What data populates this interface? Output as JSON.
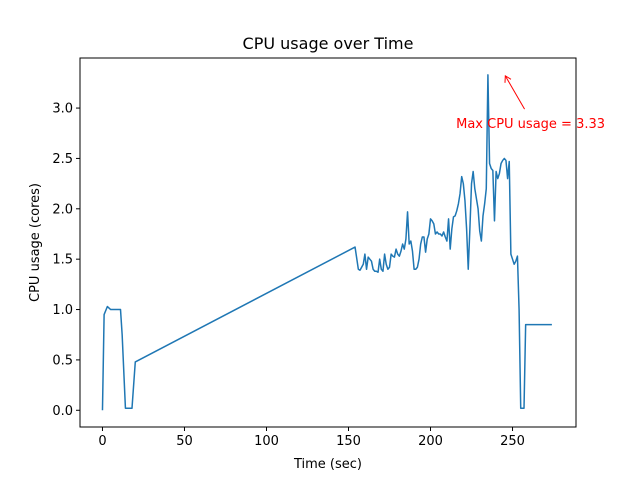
{
  "chart_data": {
    "type": "line",
    "title": "CPU usage over Time",
    "xlabel": "Time (sec)",
    "ylabel": "CPU usage (cores)",
    "xlim": [
      -13.7,
      288.7
    ],
    "ylim": [
      -0.166,
      3.497
    ],
    "x_ticks": [
      0,
      50,
      100,
      150,
      200,
      250
    ],
    "x_tick_labels": [
      "0",
      "50",
      "100",
      "150",
      "200",
      "250"
    ],
    "y_ticks": [
      0.0,
      0.5,
      1.0,
      1.5,
      2.0,
      2.5,
      3.0
    ],
    "y_tick_labels": [
      "0.0",
      "0.5",
      "1.0",
      "1.5",
      "2.0",
      "2.5",
      "3.0"
    ],
    "grid": false,
    "line_color": "#1f77b4",
    "annotation": {
      "text": "Max CPU usage = 3.33",
      "xy": [
        245,
        3.33
      ],
      "text_xy": [
        261,
        2.85
      ],
      "color": "#ff0000"
    },
    "series": [
      {
        "name": "CPU usage",
        "x": [
          0,
          1,
          3,
          5,
          7,
          9,
          11,
          12,
          14,
          16,
          18,
          20,
          154,
          156,
          157,
          159,
          160,
          161,
          162,
          163,
          164,
          165,
          166,
          167,
          168,
          169,
          170,
          171,
          172,
          173,
          174,
          175,
          176,
          177,
          178,
          179,
          180,
          181,
          182,
          183,
          184,
          185,
          186,
          187,
          188,
          189,
          190,
          191,
          192,
          193,
          194,
          195,
          196,
          197,
          198,
          199,
          200,
          201,
          202,
          203,
          204,
          205,
          206,
          207,
          208,
          209,
          210,
          211,
          212,
          213,
          214,
          215,
          216,
          217,
          218,
          219,
          220,
          221,
          222,
          223,
          224,
          225,
          226,
          227,
          228,
          229,
          230,
          231,
          232,
          233,
          234,
          235,
          236,
          237,
          238,
          239,
          240,
          241,
          242,
          243,
          244,
          245,
          246,
          247,
          248,
          249,
          250,
          251,
          252,
          253,
          254,
          255,
          256,
          257,
          258,
          259,
          260,
          261,
          262,
          263,
          264,
          265,
          266,
          267,
          268,
          269,
          270,
          271,
          272,
          273,
          274
        ],
        "y": [
          0.0,
          0.95,
          1.03,
          1.0,
          1.0,
          1.0,
          1.0,
          0.75,
          0.02,
          0.02,
          0.02,
          0.48,
          1.62,
          1.4,
          1.39,
          1.45,
          1.55,
          1.4,
          1.52,
          1.5,
          1.48,
          1.4,
          1.38,
          1.38,
          1.37,
          1.5,
          1.4,
          1.38,
          1.55,
          1.45,
          1.4,
          1.42,
          1.55,
          1.53,
          1.52,
          1.6,
          1.55,
          1.53,
          1.58,
          1.65,
          1.6,
          1.7,
          1.97,
          1.65,
          1.68,
          1.58,
          1.4,
          1.4,
          1.42,
          1.5,
          1.65,
          1.72,
          1.72,
          1.57,
          1.7,
          1.75,
          1.9,
          1.88,
          1.85,
          1.75,
          1.77,
          1.75,
          1.75,
          1.73,
          1.77,
          1.72,
          1.68,
          1.9,
          1.6,
          1.8,
          1.92,
          1.93,
          1.98,
          2.05,
          2.15,
          2.32,
          2.25,
          2.08,
          1.8,
          1.4,
          1.8,
          2.25,
          2.37,
          2.2,
          2.1,
          2.0,
          1.78,
          1.68,
          1.93,
          2.05,
          2.2,
          3.33,
          2.45,
          2.4,
          2.38,
          1.88,
          2.37,
          2.3,
          2.35,
          2.45,
          2.48,
          2.5,
          2.48,
          2.3,
          2.47,
          1.55,
          1.5,
          1.45,
          1.48,
          1.53,
          1.0,
          0.02,
          0.02,
          0.02,
          0.85,
          0.85,
          0.85,
          0.85,
          0.85,
          0.85,
          0.85,
          0.85,
          0.85,
          0.85,
          0.85,
          0.85,
          0.85,
          0.85,
          0.85,
          0.85,
          0.85
        ]
      }
    ]
  }
}
